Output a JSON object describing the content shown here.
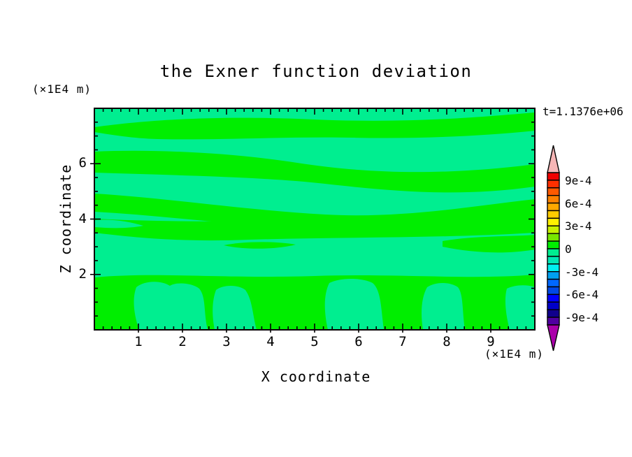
{
  "title": "the Exner function deviation",
  "time_label": "t=1.1376e+06",
  "x_axis": {
    "label": "X coordinate",
    "unit": "(×1E4 m)",
    "range": [
      0,
      10
    ],
    "ticks": [
      "1",
      "2",
      "3",
      "4",
      "5",
      "6",
      "7",
      "8",
      "9"
    ],
    "minor_step": 0.2
  },
  "z_axis": {
    "label": "Z coordinate",
    "unit": "(×1E4 m)",
    "range": [
      0,
      8
    ],
    "ticks": [
      "2",
      "4",
      "6"
    ],
    "minor_step": 0.5
  },
  "colorbar": {
    "labels": [
      "9e-4",
      "6e-4",
      "3e-4",
      "0",
      "-3e-4",
      "-6e-4",
      "-9e-4"
    ],
    "segments": [
      "#F00000",
      "#FF3000",
      "#FF5A00",
      "#FF8200",
      "#FFA800",
      "#FFCC00",
      "#FFF000",
      "#C8F000",
      "#78E600",
      "#00EE00",
      "#00EE90",
      "#00E8B4",
      "#00F0F0",
      "#00A0F0",
      "#0068FF",
      "#0048E6",
      "#0000FF",
      "#0000C8",
      "#10008C",
      "#5000A0"
    ],
    "over_color": "#F7B6B6",
    "under_color": "#AA00AA"
  },
  "field": {
    "positive_color": "#00EE00",
    "negative_color": "#00EE90",
    "positive_paths": [
      "M0,27 C80,16 180,10 315,16 C450,22 560,12 630,6 L630,32 C550,40 460,44 370,42 C280,40 170,46 90,44 C55,43 25,38 0,34 Z",
      "M0,62 C90,58 200,64 290,78 C380,92 490,98 630,80 L630,112 C520,128 420,118 330,108 C240,98 120,96 0,92 Z",
      "M0,122 C100,128 220,146 330,152 C440,158 540,140 630,130 L630,156 C540,168 440,178 330,174 C220,170 110,154 0,148 Z",
      "M0,158 C120,164 260,162 400,158 C500,155 580,160 630,156 L630,178 C500,186 360,184 220,188 C120,192 50,184 0,178 Z",
      "M185,196 C215,190 258,190 288,195 C262,202 215,203 185,196 Z",
      "M498,190 C545,182 595,184 630,181 L630,202 C585,210 535,206 498,198 Z",
      "M0,242 C90,234 180,244 315,240 C430,236 540,246 630,238 L630,317 L0,317 Z"
    ],
    "negative_overlay_paths": [
      "M0,160 C25,158 50,162 70,168 C50,172 25,172 0,170 Z",
      "M60,256 C72,246 96,246 108,254 C118,248 140,250 150,258 C160,270 156,292 162,317 L64,317 C56,294 54,272 60,256 Z",
      "M174,260 C184,252 206,252 216,260 C226,274 226,294 232,317 L172,317 C168,296 168,276 174,260 Z",
      "M336,250 C352,242 382,242 398,250 C410,260 410,286 414,317 L334,317 C328,290 328,266 336,250 Z",
      "M476,256 C488,248 508,248 520,256 C528,266 526,290 530,317 L470,317 C466,292 468,270 476,256 Z",
      "M590,258 C602,252 620,252 630,256 L630,317 L594,317 C588,294 586,272 590,258 Z"
    ]
  },
  "chart_data": {
    "type": "heatmap",
    "subtype": "filled-contour",
    "title": "the Exner function deviation",
    "xlabel": "X coordinate",
    "ylabel": "Z coordinate",
    "x_unit": "(×1E4 m)",
    "z_unit": "(×1E4 m)",
    "xlim": [
      0,
      10
    ],
    "zlim": [
      0,
      8
    ],
    "x_ticks": [
      1,
      2,
      3,
      4,
      5,
      6,
      7,
      8,
      9
    ],
    "z_ticks": [
      2,
      4,
      6
    ],
    "time_annotation": "t=1.1376e+06",
    "contour_interval": 0.0001,
    "colorbar_tick_labels": [
      "9e-4",
      "6e-4",
      "3e-4",
      "0",
      "-3e-4",
      "-6e-4",
      "-9e-4"
    ],
    "colorbar_range": [
      -0.001,
      0.001
    ],
    "visible_value_range": [
      -0.0001,
      0.0001
    ],
    "legend_position": "right",
    "grid": false,
    "description": "Entire field lies between -1e-4 and +1e-4: wavy horizontal bands alternate between slightly positive (bright green, 0..1e-4) and slightly negative (spring green, -1e-4..0). Lower quarter (z<2) is mostly positive with negative plumes rising from the bottom near x≈1.0-2.6, 2.8-3.7, 5.4-6.6, 7.6-8.4 and 9.4-10 (×1E4 m)."
  }
}
